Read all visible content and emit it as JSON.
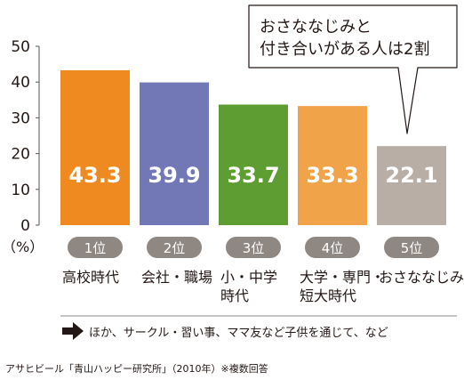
{
  "chart_data": {
    "type": "bar",
    "categories": [
      "高校時代",
      "会社・職場",
      "小・中学\n時代",
      "大学・専門・\n短大時代",
      "おさななじみ"
    ],
    "ranks": [
      "1位",
      "2位",
      "3位",
      "4位",
      "5位"
    ],
    "values": [
      43.3,
      39.9,
      33.7,
      33.3,
      22.1
    ],
    "value_labels": [
      "43.3",
      "39.9",
      "33.7",
      "33.3",
      "22.1"
    ],
    "bar_colors": [
      "#ee8a1f",
      "#7278b6",
      "#5e9d31",
      "#f0a348",
      "#b9aea6"
    ],
    "ylim": [
      0,
      50
    ],
    "yticks": [
      "0",
      "10",
      "20",
      "30",
      "40",
      "50"
    ],
    "unit_label": "（%）",
    "grid": false,
    "legend": "none"
  },
  "callout": {
    "line1": "おさななじみと",
    "line2": "付き合いがある人は2割"
  },
  "footnote_arrow": {
    "icon": "arrow-right-icon",
    "text": "ほか、サークル・習い事、ママ友など子供を通じて、など"
  },
  "source": "アサヒビール「青山ハッピー研究所」（2010年）※複数回答",
  "colors": {
    "rank_badge": "#8f8782",
    "axis": "#555555",
    "text": "#231815"
  }
}
